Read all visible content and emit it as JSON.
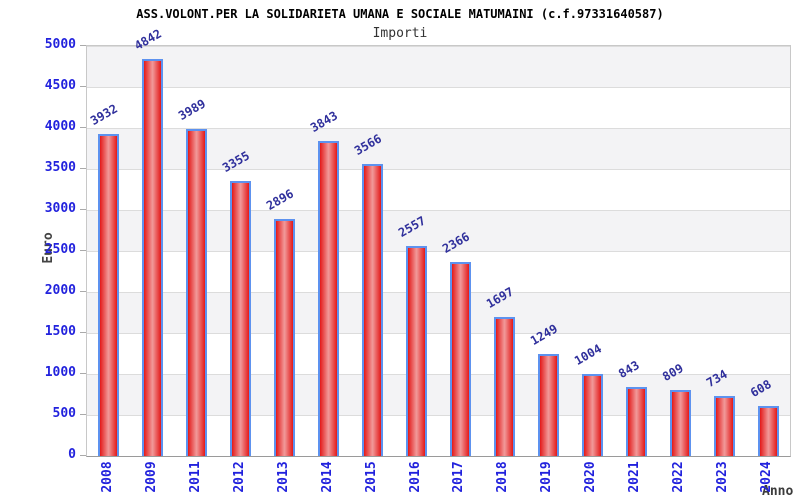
{
  "chart_data": {
    "type": "bar",
    "title": "ASS.VOLONT.PER LA SOLIDARIETA UMANA E SOCIALE MATUMAINI (c.f.97331640587)",
    "subtitle": "Importi",
    "xlabel": "Anno",
    "ylabel": "Euro",
    "categories": [
      "2008",
      "2009",
      "2011",
      "2012",
      "2013",
      "2014",
      "2015",
      "2016",
      "2017",
      "2018",
      "2019",
      "2020",
      "2021",
      "2022",
      "2023",
      "2024"
    ],
    "values": [
      3932,
      4842,
      3989,
      3355,
      2896,
      3843,
      3566,
      2557,
      2366,
      1697,
      1249,
      1004,
      843,
      809,
      734,
      608
    ],
    "ylim": [
      0,
      5000
    ],
    "ytick_step": 500,
    "grid": true,
    "legend": "none",
    "colors": {
      "bar_edge_red": "#e31919",
      "bar_center_pink": "#f19a9a",
      "bar_border_blue": "#5d92ef",
      "axis_tick_label_blue": "#2222dd",
      "value_label_navy": "#30309c",
      "band_gray": "#f3f3f5",
      "gridline_gray": "#dcdcdc",
      "axis_title_gray": "#444444",
      "title_black": "#000000"
    }
  }
}
